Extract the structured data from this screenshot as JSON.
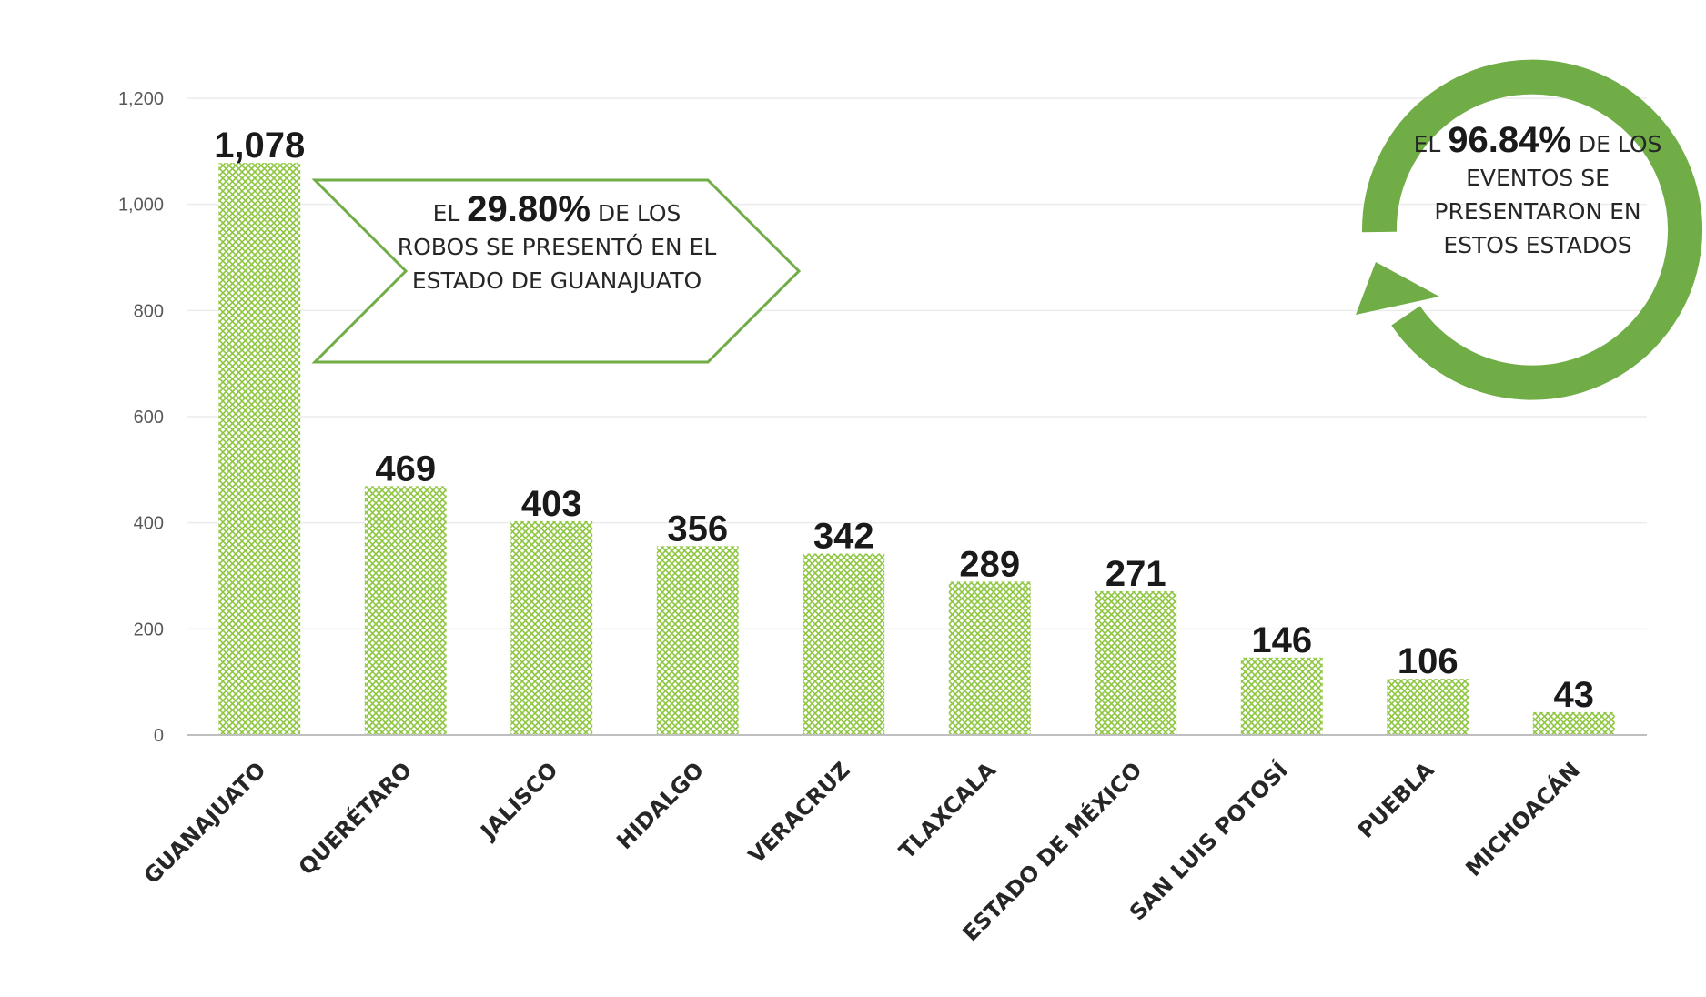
{
  "chart_data": {
    "type": "bar",
    "categories": [
      "GUANAJUATO",
      "QUERÉTARO",
      "JALISCO",
      "HIDALGO",
      "VERACRUZ",
      "TLAXCALA",
      "ESTADO DE MÉXICO",
      "SAN LUIS POTOSÍ",
      "PUEBLA",
      "MICHOACÁN"
    ],
    "values": [
      1078,
      469,
      403,
      356,
      342,
      289,
      271,
      146,
      106,
      43
    ],
    "data_labels": [
      "1,078",
      "469",
      "403",
      "356",
      "342",
      "289",
      "271",
      "146",
      "106",
      "43"
    ],
    "ylim": [
      0,
      1200
    ],
    "yticks": [
      0,
      200,
      400,
      600,
      800,
      1000,
      1200
    ],
    "ytick_labels": [
      "0",
      "200",
      "400",
      "600",
      "800",
      "1,000",
      "1,200"
    ],
    "grid": true,
    "bar_color": "#8DC63F",
    "bar_pattern": "crosshatch"
  },
  "callouts": {
    "left": {
      "pre": "EL ",
      "pct": "29.80%",
      "post": " DE LOS ROBOS SE PRESENTÓ EN EL ESTADO DE GUANAJUATO",
      "border_color": "#70AD47"
    },
    "right": {
      "pre": "EL ",
      "pct": "96.84%",
      "post": " DE LOS EVENTOS SE PRESENTARON EN ESTOS ESTADOS",
      "arrow_color": "#70AD47"
    }
  }
}
